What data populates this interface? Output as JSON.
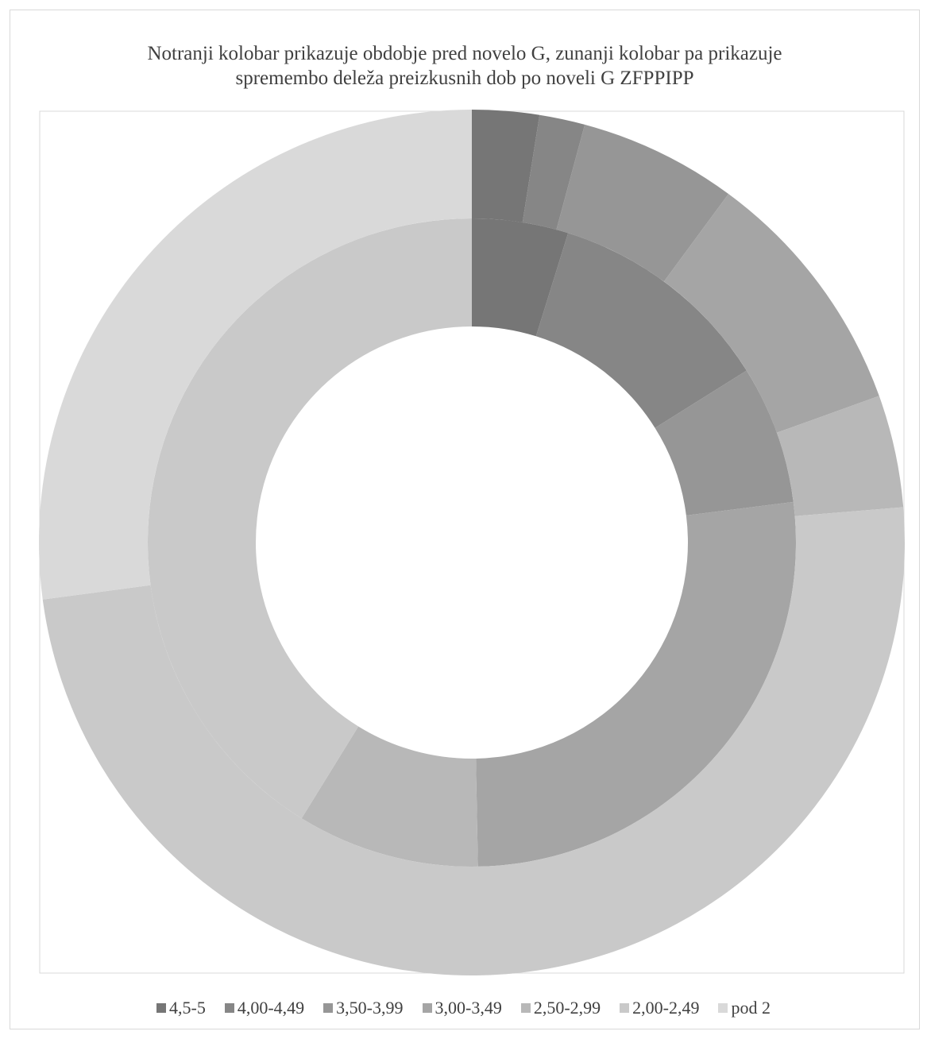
{
  "chart_data": {
    "type": "doughnut",
    "title": "Notranji kolobar prikazuje obdobje pred novelo G, zunanji kolobar pa prikazuje spremembo deleža preizkusnih dob po noveli G ZFPPIPP",
    "categories": [
      "4,5-5",
      "4,00-4,49",
      "3,50-3,99",
      "3,00-3,49",
      "2,50-2,99",
      "2,00-2,49",
      "pod 2"
    ],
    "colors": [
      "#767676",
      "#868686",
      "#969696",
      "#a5a5a5",
      "#b8b8b8",
      "#c9c9c9",
      "#d9d9d9"
    ],
    "series": [
      {
        "values": [
          4.8,
          11.3,
          6.9,
          26.7,
          9.1,
          41.2,
          0
        ]
      },
      {
        "values": [
          2.5,
          1.7,
          5.9,
          9.4,
          4.2,
          49.2,
          27.1
        ]
      }
    ],
    "legend": "bottom"
  }
}
